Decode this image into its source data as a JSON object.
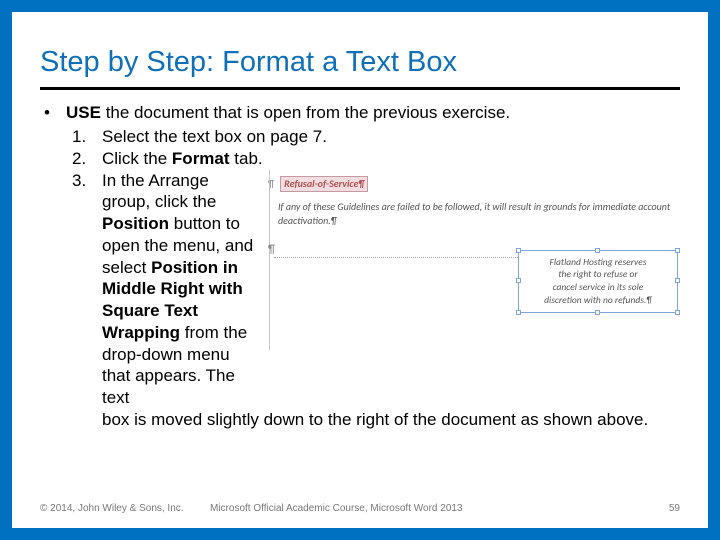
{
  "border_color": "#0070c0",
  "title": "Step by Step: Format a Text Box",
  "title_color": "#0f6fb8",
  "title_fontsize": 29,
  "rule_color": "#000000",
  "body_fontsize": 17,
  "bullet_glyph": "•",
  "use_prefix_bold": "USE",
  "use_rest": " the document that is open from the previous exercise.",
  "steps": [
    {
      "num": "1.",
      "text": "Select the text box on page 7."
    },
    {
      "num": "2.",
      "pre": "Click the ",
      "bold": "Format",
      "post": " tab."
    }
  ],
  "step3": {
    "num": "3.",
    "left_text_parts": [
      "In the Arrange group, click the ",
      "Position",
      " button to open the menu, and select ",
      "Position in Middle Right with Square Text Wrapping",
      " from the drop-down menu that appears. The text "
    ],
    "flow_text": "box is moved slightly down to the right of the document as shown above."
  },
  "excerpt": {
    "heading": "Refusal-of-Service¶",
    "heading_bg": "#f2dde0",
    "heading_border": "#c59aa0",
    "heading_color": "#b05252",
    "para": "If any of these Guidelines are failed to be followed, it will result in grounds for immediate account deactivation.¶",
    "pilcrow": "¶",
    "text_color": "#555555",
    "floatbox_lines": [
      "Flatland Hosting reserves",
      "the right to refuse or",
      "cancel service in its sole",
      "discretion with no refunds.¶"
    ],
    "floatbox_border": "#7ea6d9",
    "pane_border": "#c6c6c6"
  },
  "footer": {
    "copyright": "© 2014, John Wiley & Sons, Inc.",
    "course": "Microsoft Official Academic Course, Microsoft Word 2013",
    "page": "59",
    "color": "#787878",
    "fontsize": 10
  }
}
